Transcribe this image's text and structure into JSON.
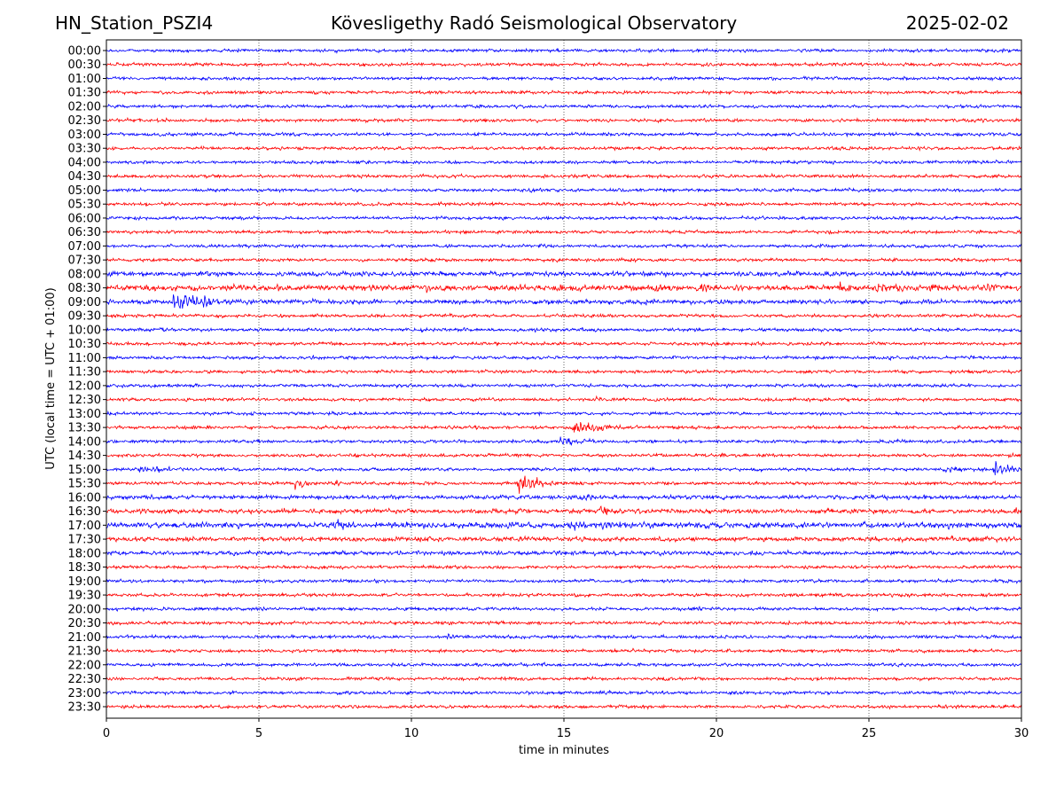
{
  "header": {
    "station": "HN_Station_PSZI4",
    "title": "Kövesligethy Radó Seismological Observatory",
    "date": "2025-02-02"
  },
  "chart_data": {
    "type": "line",
    "subtype": "helicorder",
    "xlabel": "time in minutes",
    "ylabel": "UTC (local time = UTC + 01:00)",
    "xlim": [
      0,
      30
    ],
    "x_ticks": [
      "0",
      "5",
      "10",
      "15",
      "20",
      "25",
      "30"
    ],
    "grid": "vertical dotted at every 5 minutes",
    "colors": [
      "#0000ff",
      "#ff0000"
    ],
    "rows": [
      "00:00",
      "00:30",
      "01:00",
      "01:30",
      "02:00",
      "02:30",
      "03:00",
      "03:30",
      "04:00",
      "04:30",
      "05:00",
      "05:30",
      "06:00",
      "06:30",
      "07:00",
      "07:30",
      "08:00",
      "08:30",
      "09:00",
      "09:30",
      "10:00",
      "10:30",
      "11:00",
      "11:30",
      "12:00",
      "12:30",
      "13:00",
      "13:30",
      "14:00",
      "14:30",
      "15:00",
      "15:30",
      "16:00",
      "16:30",
      "17:00",
      "17:30",
      "18:00",
      "18:30",
      "19:00",
      "19:30",
      "20:00",
      "20:30",
      "21:00",
      "21:30",
      "22:00",
      "22:30",
      "23:00",
      "23:30"
    ],
    "noise_level": {
      "default": 1.4,
      "08:00": 2.0,
      "08:30": 2.4,
      "09:00": 2.0,
      "16:00": 1.8,
      "16:30": 2.0,
      "17:00": 2.5,
      "17:30": 2.0,
      "18:00": 1.8
    },
    "events": [
      {
        "row": "05:00",
        "minute": 13.6,
        "amp": 3,
        "dur": 0.6
      },
      {
        "row": "08:30",
        "minute": 5.5,
        "amp": 6,
        "dur": 0.4
      },
      {
        "row": "08:30",
        "minute": 8.6,
        "amp": 4,
        "dur": 0.3
      },
      {
        "row": "08:30",
        "minute": 10.5,
        "amp": 3,
        "dur": 0.4
      },
      {
        "row": "08:30",
        "minute": 18.0,
        "amp": 4,
        "dur": 0.6
      },
      {
        "row": "08:30",
        "minute": 19.5,
        "amp": 7,
        "dur": 0.6
      },
      {
        "row": "08:30",
        "minute": 20.7,
        "amp": 4,
        "dur": 0.5
      },
      {
        "row": "08:30",
        "minute": 24.0,
        "amp": 4,
        "dur": 0.6
      },
      {
        "row": "08:30",
        "minute": 25.3,
        "amp": 7,
        "dur": 0.6
      },
      {
        "row": "08:30",
        "minute": 27.0,
        "amp": 5,
        "dur": 0.6
      },
      {
        "row": "08:30",
        "minute": 28.7,
        "amp": 4,
        "dur": 0.8
      },
      {
        "row": "09:00",
        "minute": 2.2,
        "amp": 8,
        "dur": 2.2
      },
      {
        "row": "11:30",
        "minute": 19.0,
        "amp": 2.5,
        "dur": 0.6
      },
      {
        "row": "12:30",
        "minute": 16.0,
        "amp": 2.5,
        "dur": 0.3
      },
      {
        "row": "13:30",
        "minute": 15.3,
        "amp": 8,
        "dur": 1.2
      },
      {
        "row": "14:00",
        "minute": 14.9,
        "amp": 5,
        "dur": 0.8
      },
      {
        "row": "15:00",
        "minute": 1.0,
        "amp": 2.5,
        "dur": 3.0
      },
      {
        "row": "15:00",
        "minute": 27.5,
        "amp": 3,
        "dur": 1.0
      },
      {
        "row": "15:00",
        "minute": 29.1,
        "amp": 10,
        "dur": 0.9
      },
      {
        "row": "15:30",
        "minute": 6.2,
        "amp": 8,
        "dur": 0.5
      },
      {
        "row": "15:30",
        "minute": 7.5,
        "amp": 3,
        "dur": 0.6
      },
      {
        "row": "15:30",
        "minute": 13.5,
        "amp": 9,
        "dur": 0.9
      },
      {
        "row": "16:00",
        "minute": 15.5,
        "amp": 3,
        "dur": 0.6
      },
      {
        "row": "16:30",
        "minute": 16.2,
        "amp": 6,
        "dur": 0.8
      },
      {
        "row": "16:30",
        "minute": 29.8,
        "amp": 7,
        "dur": 0.2
      },
      {
        "row": "17:00",
        "minute": 7.6,
        "amp": 6,
        "dur": 0.6
      },
      {
        "row": "17:00",
        "minute": 15.2,
        "amp": 6,
        "dur": 0.6
      },
      {
        "row": "17:00",
        "minute": 16.3,
        "amp": 6,
        "dur": 0.7
      },
      {
        "row": "17:30",
        "minute": 13.5,
        "amp": 3,
        "dur": 1.0
      },
      {
        "row": "17:30",
        "minute": 15.4,
        "amp": 4,
        "dur": 0.4
      },
      {
        "row": "17:30",
        "minute": 27.2,
        "amp": 3,
        "dur": 0.8
      },
      {
        "row": "21:00",
        "minute": 11.2,
        "amp": 2.5,
        "dur": 0.8
      }
    ]
  }
}
